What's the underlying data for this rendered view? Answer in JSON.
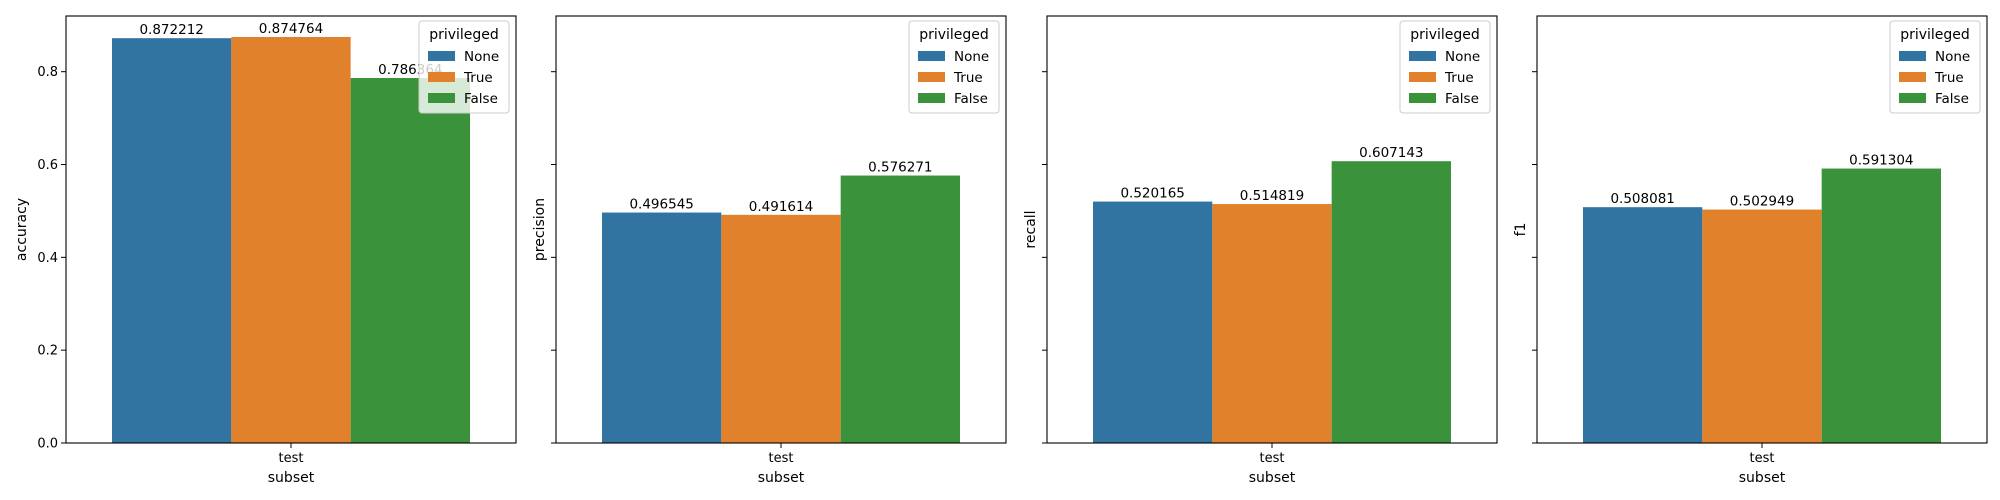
{
  "chart_data": [
    {
      "type": "bar",
      "categories": [
        "test"
      ],
      "series": [
        {
          "name": "None",
          "values": [
            0.872212
          ]
        },
        {
          "name": "True",
          "values": [
            0.874764
          ]
        },
        {
          "name": "False",
          "values": [
            0.786364
          ]
        }
      ],
      "data_labels": [
        "0.872212",
        "0.874764",
        "0.786364"
      ],
      "xlabel": "subset",
      "ylabel": "accuracy",
      "ylim": [
        0,
        0.92
      ],
      "yticks": [
        "0.0",
        "0.2",
        "0.4",
        "0.6",
        "0.8"
      ],
      "show_ytick_labels": true,
      "legend": {
        "title": "privileged",
        "position": "top-right"
      },
      "grid": false
    },
    {
      "type": "bar",
      "categories": [
        "test"
      ],
      "series": [
        {
          "name": "None",
          "values": [
            0.496545
          ]
        },
        {
          "name": "True",
          "values": [
            0.491614
          ]
        },
        {
          "name": "False",
          "values": [
            0.576271
          ]
        }
      ],
      "data_labels": [
        "0.496545",
        "0.491614",
        "0.576271"
      ],
      "xlabel": "subset",
      "ylabel": "precision",
      "ylim": [
        0,
        0.92
      ],
      "yticks": [
        "0.0",
        "0.2",
        "0.4",
        "0.6",
        "0.8"
      ],
      "show_ytick_labels": false,
      "legend": {
        "title": "privileged",
        "position": "top-right"
      },
      "grid": false
    },
    {
      "type": "bar",
      "categories": [
        "test"
      ],
      "series": [
        {
          "name": "None",
          "values": [
            0.520165
          ]
        },
        {
          "name": "True",
          "values": [
            0.514819
          ]
        },
        {
          "name": "False",
          "values": [
            0.607143
          ]
        }
      ],
      "data_labels": [
        "0.520165",
        "0.514819",
        "0.607143"
      ],
      "xlabel": "subset",
      "ylabel": "recall",
      "ylim": [
        0,
        0.92
      ],
      "yticks": [
        "0.0",
        "0.2",
        "0.4",
        "0.6",
        "0.8"
      ],
      "show_ytick_labels": false,
      "legend": {
        "title": "privileged",
        "position": "top-right"
      },
      "grid": false
    },
    {
      "type": "bar",
      "categories": [
        "test"
      ],
      "series": [
        {
          "name": "None",
          "values": [
            0.508081
          ]
        },
        {
          "name": "True",
          "values": [
            0.502949
          ]
        },
        {
          "name": "False",
          "values": [
            0.591304
          ]
        }
      ],
      "data_labels": [
        "0.508081",
        "0.502949",
        "0.591304"
      ],
      "xlabel": "subset",
      "ylabel": "f1",
      "ylim": [
        0,
        0.92
      ],
      "yticks": [
        "0.0",
        "0.2",
        "0.4",
        "0.6",
        "0.8"
      ],
      "show_ytick_labels": false,
      "legend": {
        "title": "privileged",
        "position": "top-right"
      },
      "grid": false
    }
  ],
  "colors": {
    "None": "#3274a1",
    "True": "#e1812c",
    "False": "#3a923a"
  }
}
